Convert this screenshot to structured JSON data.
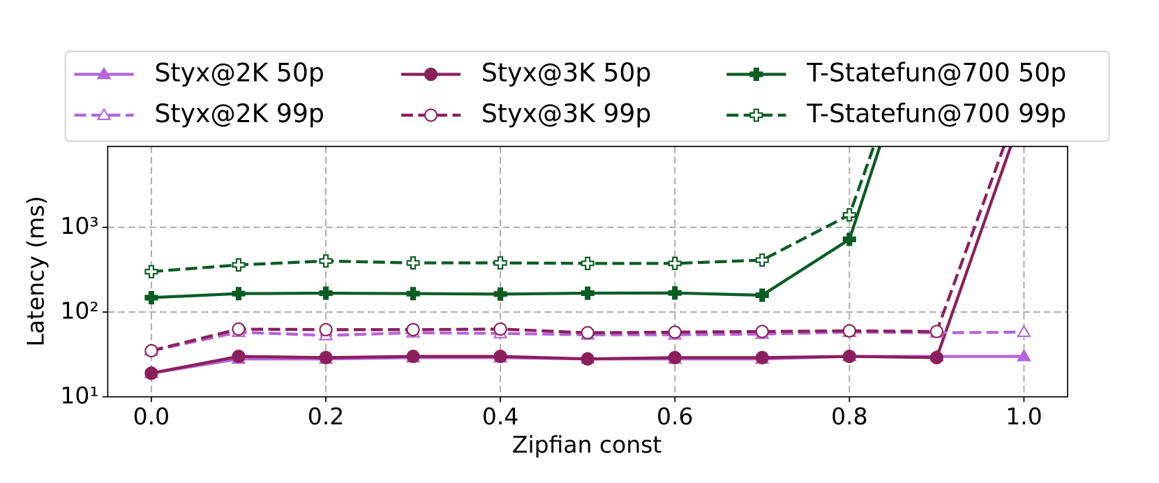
{
  "chart_data": {
    "type": "line",
    "x_label": "Zipfian const",
    "y_label": "Latency (ms)",
    "x": [
      0,
      0.1,
      0.2,
      0.3,
      0.4,
      0.5,
      0.6,
      0.7,
      0.8,
      0.9,
      1.0
    ],
    "xlim": [
      -0.05,
      1.05
    ],
    "xticks": [
      {
        "value": 0,
        "label": "0.0"
      },
      0.2,
      0.4,
      0.6,
      0.8,
      {
        "value": 1,
        "label": "1.0"
      }
    ],
    "ylim": [
      10,
      9000
    ],
    "y_scale": "log",
    "yticks": [
      {
        "value": 10,
        "label": "10¹"
      },
      {
        "value": 100,
        "label": "10²"
      },
      {
        "value": 1000,
        "label": "10³"
      }
    ],
    "grid": true,
    "legend": "top",
    "series": [
      {
        "name": "Styx@2K 50p",
        "color": "#b565d9",
        "linestyle": "solid",
        "marker": "triangle",
        "marker_fill": true,
        "values": [
          19,
          28,
          28,
          29,
          29,
          28,
          28,
          28,
          30,
          30,
          30
        ]
      },
      {
        "name": "Styx@3K 50p",
        "color": "#8b1f5c",
        "linestyle": "solid",
        "marker": "circle",
        "marker_fill": true,
        "values": [
          19,
          30,
          29,
          30,
          30,
          28,
          29,
          29,
          30,
          29,
          25000
        ]
      },
      {
        "name": "T-Statefun@700 50p",
        "color": "#0a5c23",
        "linestyle": "solid",
        "marker": "plus",
        "marker_fill": true,
        "values": [
          148,
          165,
          167,
          165,
          163,
          167,
          168,
          158,
          720,
          1000000,
          null
        ]
      },
      {
        "name": "Styx@2K 99p",
        "color": "#b565d9",
        "linestyle": "dashed",
        "marker": "triangle",
        "marker_fill": false,
        "values": [
          35,
          58,
          53,
          57,
          56,
          54,
          54,
          55,
          58,
          57,
          58
        ]
      },
      {
        "name": "Styx@3K 99p",
        "color": "#8b1f5c",
        "linestyle": "dashed",
        "marker": "circle",
        "marker_fill": false,
        "values": [
          35,
          63,
          62,
          62,
          63,
          57,
          58,
          59,
          60,
          59,
          40000
        ]
      },
      {
        "name": "T-Statefun@700 99p",
        "color": "#0a5c23",
        "linestyle": "dashed",
        "marker": "plus",
        "marker_fill": false,
        "values": [
          300,
          360,
          400,
          380,
          380,
          375,
          375,
          410,
          1400,
          1100000,
          null
        ]
      }
    ]
  }
}
